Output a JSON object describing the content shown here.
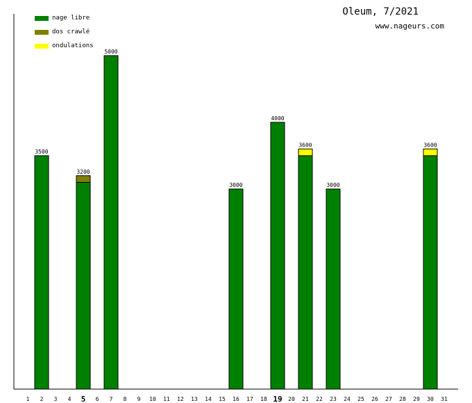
{
  "chart_data": {
    "type": "bar",
    "stacked": true,
    "title": "Oleum, 7/2021",
    "subtitle": "www.nageurs.com",
    "categories": [
      "1",
      "2",
      "3",
      "4",
      "5",
      "6",
      "7",
      "8",
      "9",
      "10",
      "11",
      "12",
      "13",
      "14",
      "15",
      "16",
      "17",
      "18",
      "19",
      "20",
      "21",
      "22",
      "23",
      "24",
      "25",
      "26",
      "27",
      "28",
      "29",
      "30",
      "31"
    ],
    "highlighted_categories": [
      "5",
      "19"
    ],
    "series": [
      {
        "name": "nage libre",
        "color": "#008000",
        "values": [
          0,
          3500,
          0,
          0,
          3100,
          0,
          5000,
          0,
          0,
          0,
          0,
          0,
          0,
          0,
          0,
          3000,
          0,
          0,
          4000,
          0,
          3500,
          0,
          3000,
          0,
          0,
          0,
          0,
          0,
          0,
          3500,
          0
        ]
      },
      {
        "name": "dos crawlé",
        "color": "#808000",
        "values": [
          0,
          0,
          0,
          0,
          100,
          0,
          0,
          0,
          0,
          0,
          0,
          0,
          0,
          0,
          0,
          0,
          0,
          0,
          0,
          0,
          0,
          0,
          0,
          0,
          0,
          0,
          0,
          0,
          0,
          0,
          0
        ]
      },
      {
        "name": "ondulations",
        "color": "#ffff00",
        "values": [
          0,
          0,
          0,
          0,
          0,
          0,
          0,
          0,
          0,
          0,
          0,
          0,
          0,
          0,
          0,
          0,
          0,
          0,
          0,
          0,
          100,
          0,
          0,
          0,
          0,
          0,
          0,
          0,
          0,
          100,
          0
        ]
      }
    ],
    "totals": [
      "",
      "3500",
      "",
      "",
      "3200",
      "",
      "5000",
      "",
      "",
      "",
      "",
      "",
      "",
      "",
      "",
      "3000",
      "",
      "",
      "4000",
      "",
      "3600",
      "",
      "3000",
      "",
      "",
      "",
      "",
      "",
      "",
      "3600",
      ""
    ],
    "ylim": [
      0,
      5000
    ],
    "legend_position": "top-left",
    "grid": false
  }
}
